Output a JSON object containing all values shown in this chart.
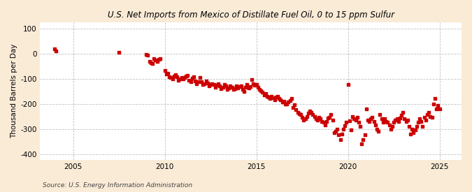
{
  "title": "U.S. Net Imports from Mexico of Distillate Fuel Oil, 0 to 15 ppm Sulfur",
  "ylabel": "Thousand Barrels per Day",
  "source": "Source: U.S. Energy Information Administration",
  "background_color": "#faebd7",
  "plot_background": "#ffffff",
  "marker_color": "#cc0000",
  "ylim": [
    -420,
    125
  ],
  "yticks": [
    -400,
    -300,
    -200,
    -100,
    0,
    100
  ],
  "xlim": [
    2003.2,
    2026.2
  ],
  "xticks": [
    2005,
    2010,
    2015,
    2020,
    2025
  ],
  "grid_color": "#999999",
  "data": [
    [
      2004.0,
      20
    ],
    [
      2004.08,
      12
    ],
    [
      2007.5,
      5
    ],
    [
      2009.0,
      -2
    ],
    [
      2009.08,
      -5
    ],
    [
      2009.17,
      -30
    ],
    [
      2009.25,
      -35
    ],
    [
      2009.33,
      -40
    ],
    [
      2009.42,
      -20
    ],
    [
      2009.5,
      -25
    ],
    [
      2009.58,
      -30
    ],
    [
      2009.67,
      -22
    ],
    [
      2009.75,
      -18
    ],
    [
      2010.0,
      -65
    ],
    [
      2010.08,
      -80
    ],
    [
      2010.17,
      -78
    ],
    [
      2010.25,
      -90
    ],
    [
      2010.33,
      -95
    ],
    [
      2010.42,
      -100
    ],
    [
      2010.5,
      -88
    ],
    [
      2010.58,
      -82
    ],
    [
      2010.67,
      -92
    ],
    [
      2010.75,
      -105
    ],
    [
      2010.83,
      -100
    ],
    [
      2010.92,
      -95
    ],
    [
      2011.0,
      -100
    ],
    [
      2011.08,
      -95
    ],
    [
      2011.17,
      -88
    ],
    [
      2011.25,
      -85
    ],
    [
      2011.33,
      -105
    ],
    [
      2011.42,
      -112
    ],
    [
      2011.5,
      -98
    ],
    [
      2011.58,
      -92
    ],
    [
      2011.67,
      -108
    ],
    [
      2011.75,
      -118
    ],
    [
      2011.83,
      -110
    ],
    [
      2011.92,
      -95
    ],
    [
      2012.0,
      -112
    ],
    [
      2012.08,
      -122
    ],
    [
      2012.17,
      -118
    ],
    [
      2012.25,
      -108
    ],
    [
      2012.33,
      -115
    ],
    [
      2012.42,
      -128
    ],
    [
      2012.5,
      -122
    ],
    [
      2012.58,
      -118
    ],
    [
      2012.67,
      -122
    ],
    [
      2012.75,
      -132
    ],
    [
      2012.83,
      -125
    ],
    [
      2012.92,
      -118
    ],
    [
      2013.0,
      -128
    ],
    [
      2013.08,
      -138
    ],
    [
      2013.17,
      -132
    ],
    [
      2013.25,
      -122
    ],
    [
      2013.33,
      -128
    ],
    [
      2013.42,
      -142
    ],
    [
      2013.5,
      -135
    ],
    [
      2013.58,
      -128
    ],
    [
      2013.67,
      -132
    ],
    [
      2013.75,
      -142
    ],
    [
      2013.83,
      -138
    ],
    [
      2013.92,
      -128
    ],
    [
      2014.0,
      -135
    ],
    [
      2014.08,
      -130
    ],
    [
      2014.17,
      -128
    ],
    [
      2014.25,
      -142
    ],
    [
      2014.33,
      -150
    ],
    [
      2014.42,
      -132
    ],
    [
      2014.5,
      -122
    ],
    [
      2014.58,
      -135
    ],
    [
      2014.67,
      -130
    ],
    [
      2014.75,
      -102
    ],
    [
      2014.83,
      -118
    ],
    [
      2014.92,
      -125
    ],
    [
      2015.0,
      -122
    ],
    [
      2015.08,
      -132
    ],
    [
      2015.17,
      -142
    ],
    [
      2015.25,
      -148
    ],
    [
      2015.33,
      -152
    ],
    [
      2015.42,
      -162
    ],
    [
      2015.5,
      -158
    ],
    [
      2015.58,
      -168
    ],
    [
      2015.67,
      -172
    ],
    [
      2015.75,
      -178
    ],
    [
      2015.83,
      -168
    ],
    [
      2015.92,
      -175
    ],
    [
      2016.0,
      -182
    ],
    [
      2016.08,
      -172
    ],
    [
      2016.17,
      -168
    ],
    [
      2016.25,
      -178
    ],
    [
      2016.33,
      -182
    ],
    [
      2016.42,
      -192
    ],
    [
      2016.5,
      -188
    ],
    [
      2016.58,
      -198
    ],
    [
      2016.67,
      -198
    ],
    [
      2016.75,
      -192
    ],
    [
      2016.83,
      -185
    ],
    [
      2016.92,
      -178
    ],
    [
      2017.0,
      -212
    ],
    [
      2017.08,
      -202
    ],
    [
      2017.17,
      -222
    ],
    [
      2017.25,
      -232
    ],
    [
      2017.33,
      -238
    ],
    [
      2017.42,
      -242
    ],
    [
      2017.5,
      -252
    ],
    [
      2017.58,
      -262
    ],
    [
      2017.67,
      -258
    ],
    [
      2017.75,
      -248
    ],
    [
      2017.83,
      -235
    ],
    [
      2017.92,
      -228
    ],
    [
      2018.0,
      -232
    ],
    [
      2018.08,
      -242
    ],
    [
      2018.17,
      -248
    ],
    [
      2018.25,
      -258
    ],
    [
      2018.33,
      -262
    ],
    [
      2018.42,
      -252
    ],
    [
      2018.5,
      -258
    ],
    [
      2018.58,
      -268
    ],
    [
      2018.67,
      -272
    ],
    [
      2018.75,
      -282
    ],
    [
      2018.83,
      -268
    ],
    [
      2018.92,
      -255
    ],
    [
      2019.0,
      -252
    ],
    [
      2019.08,
      -242
    ],
    [
      2019.17,
      -262
    ],
    [
      2019.25,
      -312
    ],
    [
      2019.33,
      -308
    ],
    [
      2019.42,
      -298
    ],
    [
      2019.5,
      -322
    ],
    [
      2019.58,
      -342
    ],
    [
      2019.67,
      -318
    ],
    [
      2019.75,
      -298
    ],
    [
      2019.83,
      -285
    ],
    [
      2019.92,
      -272
    ],
    [
      2020.0,
      -122
    ],
    [
      2020.08,
      -265
    ],
    [
      2020.17,
      -302
    ],
    [
      2020.25,
      -248
    ],
    [
      2020.33,
      -258
    ],
    [
      2020.42,
      -262
    ],
    [
      2020.5,
      -252
    ],
    [
      2020.58,
      -272
    ],
    [
      2020.67,
      -288
    ],
    [
      2020.75,
      -358
    ],
    [
      2020.83,
      -342
    ],
    [
      2020.92,
      -322
    ],
    [
      2021.0,
      -218
    ],
    [
      2021.08,
      -262
    ],
    [
      2021.17,
      -268
    ],
    [
      2021.25,
      -258
    ],
    [
      2021.33,
      -252
    ],
    [
      2021.42,
      -268
    ],
    [
      2021.5,
      -282
    ],
    [
      2021.58,
      -298
    ],
    [
      2021.67,
      -308
    ],
    [
      2021.75,
      -242
    ],
    [
      2021.83,
      -258
    ],
    [
      2021.92,
      -272
    ],
    [
      2022.0,
      -258
    ],
    [
      2022.08,
      -268
    ],
    [
      2022.17,
      -272
    ],
    [
      2022.25,
      -282
    ],
    [
      2022.33,
      -298
    ],
    [
      2022.42,
      -288
    ],
    [
      2022.5,
      -272
    ],
    [
      2022.58,
      -262
    ],
    [
      2022.67,
      -258
    ],
    [
      2022.75,
      -268
    ],
    [
      2022.83,
      -255
    ],
    [
      2022.92,
      -245
    ],
    [
      2023.0,
      -232
    ],
    [
      2023.08,
      -258
    ],
    [
      2023.17,
      -268
    ],
    [
      2023.25,
      -262
    ],
    [
      2023.33,
      -288
    ],
    [
      2023.42,
      -318
    ],
    [
      2023.5,
      -298
    ],
    [
      2023.58,
      -312
    ],
    [
      2023.67,
      -302
    ],
    [
      2023.75,
      -288
    ],
    [
      2023.83,
      -272
    ],
    [
      2023.92,
      -258
    ],
    [
      2024.0,
      -268
    ],
    [
      2024.08,
      -288
    ],
    [
      2024.17,
      -252
    ],
    [
      2024.25,
      -262
    ],
    [
      2024.33,
      -242
    ],
    [
      2024.42,
      -232
    ],
    [
      2024.5,
      -248
    ],
    [
      2024.58,
      -252
    ],
    [
      2024.67,
      -198
    ],
    [
      2024.75,
      -178
    ],
    [
      2024.83,
      -218
    ],
    [
      2024.92,
      -205
    ],
    [
      2025.0,
      -218
    ]
  ]
}
